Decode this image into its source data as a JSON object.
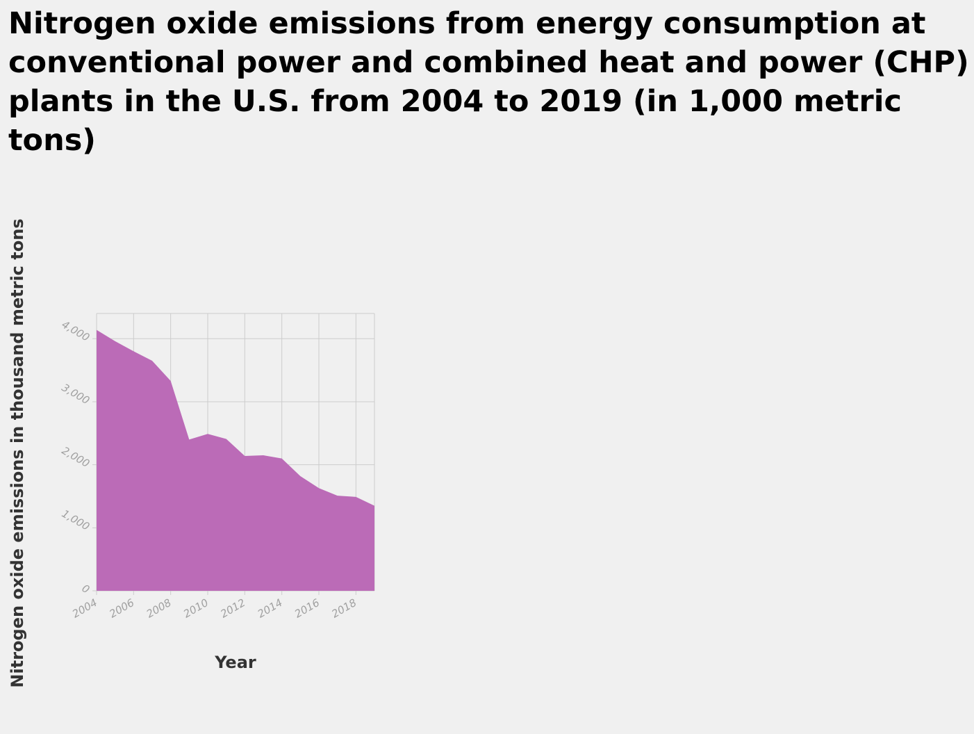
{
  "chart_data": {
    "type": "area",
    "title": "Nitrogen oxide emissions from energy consumption at conventional power and combined heat and power (CHP) plants in the U.S. from 2004 to 2019 (in 1,000 metric tons)",
    "xlabel": "Year",
    "ylabel": "Nitrogen oxide emissions in thousand metric tons",
    "x": [
      2004,
      2005,
      2006,
      2007,
      2008,
      2009,
      2010,
      2011,
      2012,
      2013,
      2014,
      2015,
      2016,
      2017,
      2018,
      2019
    ],
    "values": [
      4140,
      3960,
      3800,
      3650,
      3330,
      2400,
      2490,
      2410,
      2140,
      2150,
      2100,
      1820,
      1630,
      1510,
      1490,
      1350
    ],
    "xlim": [
      2004,
      2019
    ],
    "ylim": [
      0,
      4400
    ],
    "x_ticks": [
      "2004",
      "2006",
      "2008",
      "2010",
      "2012",
      "2014",
      "2016",
      "2018"
    ],
    "x_tick_values": [
      2004,
      2006,
      2008,
      2010,
      2012,
      2014,
      2016,
      2018
    ],
    "y_ticks": [
      "0",
      "1,000",
      "2,000",
      "3,000",
      "4,000"
    ],
    "y_tick_values": [
      0,
      1000,
      2000,
      3000,
      4000
    ],
    "grid": true,
    "legend": "none",
    "area_color": "#bb6bb7",
    "grid_color": "#cccccc"
  }
}
